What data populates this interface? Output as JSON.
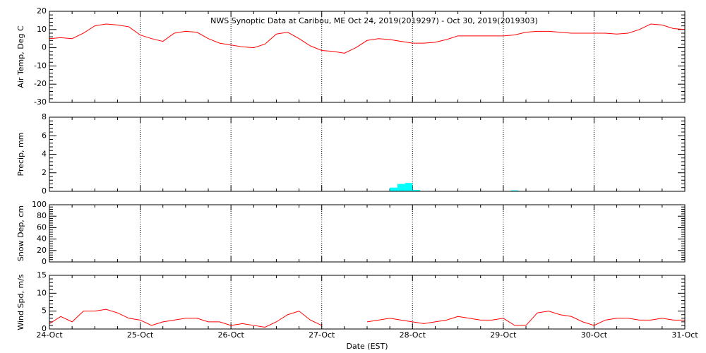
{
  "chart_data": [
    {
      "type": "line",
      "title": "NWS Synoptic Data at Caribou, ME   Oct 24, 2019(2019297) - Oct 30, 2019(2019303)",
      "ylabel": "Air Temp, Deg C",
      "color": "#ff0000",
      "ylim": [
        -30,
        20
      ],
      "yticks": [
        -30,
        -20,
        -10,
        0,
        10,
        20
      ],
      "xgrid": true,
      "values": [
        5,
        5.5,
        5,
        8,
        12,
        13,
        12.5,
        11.5,
        7,
        5,
        3.5,
        8,
        9,
        8.5,
        5,
        2.5,
        1.5,
        0.5,
        0,
        2,
        7.5,
        8.5,
        5,
        1,
        -1.5,
        -2,
        -3,
        0,
        4,
        5,
        4.5,
        3.5,
        2.5,
        2.5,
        3,
        4.5,
        6.5,
        6.5,
        6.5,
        6.5,
        6.5,
        7,
        8.5,
        9,
        9,
        8.5,
        8,
        8,
        8,
        8,
        7.5,
        8,
        10,
        13,
        12.5,
        10.5,
        10
      ]
    },
    {
      "type": "bar",
      "ylabel": "Precip, mm",
      "color": "#00ffff",
      "ylim": [
        0,
        8
      ],
      "yticks": [
        0,
        2,
        4,
        6,
        8
      ],
      "xgrid": true,
      "values": [
        0,
        0,
        0,
        0,
        0,
        0,
        0,
        0,
        0,
        0,
        0,
        0,
        0,
        0,
        0,
        0,
        0,
        0,
        0,
        0,
        0,
        0,
        0,
        0,
        0,
        0,
        0,
        0,
        0,
        0,
        0,
        0,
        0,
        0,
        0,
        0,
        0,
        0,
        0,
        0,
        0,
        0,
        0,
        0,
        0,
        0.4,
        0.8,
        0.9,
        0.15,
        0,
        0,
        0,
        0,
        0,
        0,
        0,
        0,
        0,
        0,
        0,
        0,
        0.1,
        0,
        0,
        0,
        0,
        0,
        0,
        0,
        0,
        0,
        0,
        0,
        0,
        0,
        0,
        0,
        0,
        0,
        0,
        0,
        0,
        0,
        0
      ]
    },
    {
      "type": "line",
      "ylabel": "Snow Dep, cm",
      "color": "#ff0000",
      "ylim": [
        0,
        100
      ],
      "yticks": [
        0,
        20,
        40,
        60,
        80,
        100
      ],
      "xgrid": true,
      "values": []
    },
    {
      "type": "line",
      "ylabel": "Wind Spd, m/s",
      "xlabel": "Date (EST)",
      "color": "#ff0000",
      "ylim": [
        0,
        15
      ],
      "yticks": [
        0,
        5,
        10,
        15
      ],
      "xgrid": true,
      "xticks": [
        "24-Oct",
        "25-Oct",
        "26-Oct",
        "27-Oct",
        "28-Oct",
        "29-Oct",
        "30-Oct",
        "31-Oct"
      ],
      "values": [
        1.5,
        3.5,
        2,
        5,
        5,
        5.5,
        4.5,
        3,
        2.5,
        1,
        2,
        2.5,
        3,
        3,
        2,
        2,
        1,
        1.5,
        1,
        0.5,
        2,
        4,
        5,
        2.5,
        1,
        null,
        null,
        null,
        2,
        2.5,
        3,
        2.5,
        2,
        1.5,
        2,
        2.5,
        3.5,
        3,
        2.5,
        2.5,
        3,
        1,
        1,
        4.5,
        5,
        4,
        3.5,
        2,
        1,
        2.5,
        3,
        3,
        2.5,
        2.5,
        3,
        2.5,
        2.5
      ]
    }
  ]
}
